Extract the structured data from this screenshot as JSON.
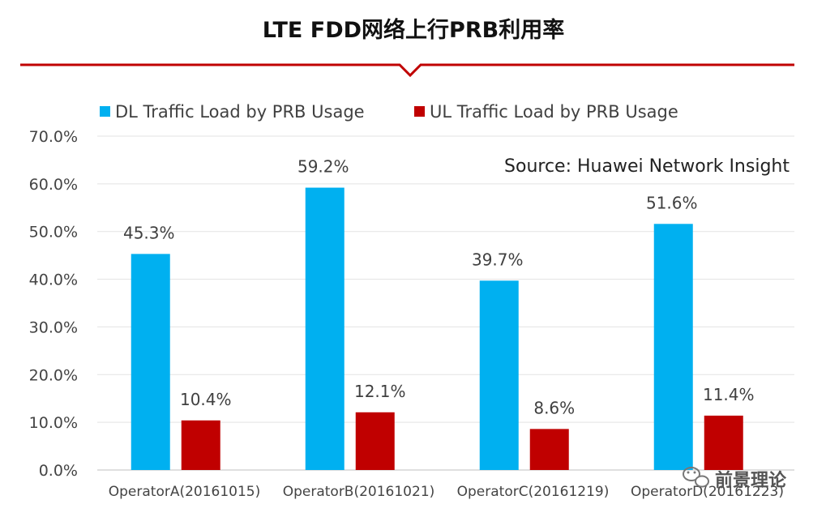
{
  "chart_data": {
    "type": "bar",
    "title": "LTE FDD网络上行PRB利用率",
    "categories": [
      "OperatorA(20161015)",
      "OperatorB(20161021)",
      "OperatorC(20161219)",
      "OperatorD(20161223)"
    ],
    "series": [
      {
        "name": "DL Traffic Load by PRB Usage",
        "color": "#00b0f0",
        "values": [
          45.3,
          59.2,
          39.7,
          51.6
        ],
        "labels": [
          "45.3%",
          "59.2%",
          "39.7%",
          "51.6%"
        ]
      },
      {
        "name": "UL Traffic Load by PRB Usage",
        "color": "#c00000",
        "values": [
          10.4,
          12.1,
          8.6,
          11.4
        ],
        "labels": [
          "10.4%",
          "12.1%",
          "8.6%",
          "11.4%"
        ]
      }
    ],
    "ylim": [
      0,
      70
    ],
    "yticks": [
      "0.0%",
      "10.0%",
      "20.0%",
      "30.0%",
      "40.0%",
      "50.0%",
      "60.0%",
      "70.0%"
    ],
    "ytick_values": [
      0,
      10,
      20,
      30,
      40,
      50,
      60,
      70
    ],
    "legend_position": "top",
    "grid": true,
    "annotation": "Source: Huawei Network Insight",
    "accent_color": "#c00000"
  },
  "watermark": {
    "icon": "wechat-icon",
    "text": "前景理论"
  }
}
